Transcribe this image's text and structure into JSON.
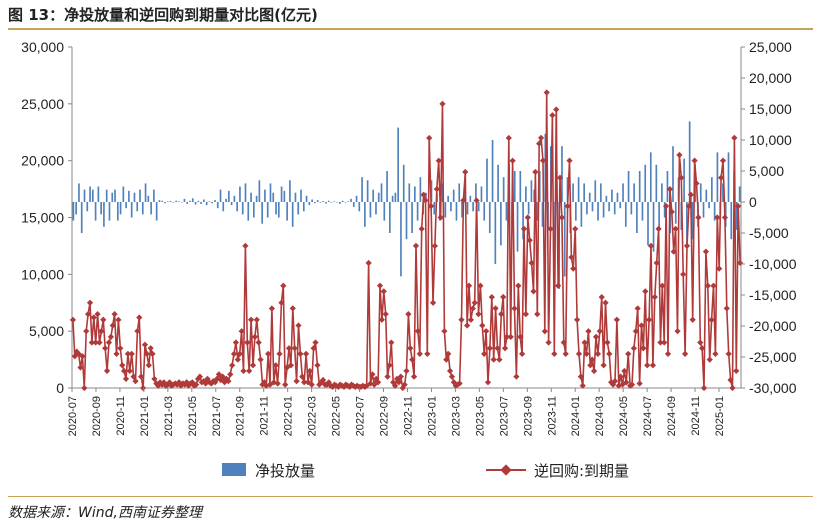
{
  "figure": {
    "title": "图 13：净投放量和逆回购到期量对比图(亿元)",
    "source": "数据来源：Wind,西南证券整理"
  },
  "colors": {
    "bar": "#4f81bd",
    "line": "#b03a3a",
    "accent": "#c9a25a"
  },
  "chart_data": {
    "type": "bar+line",
    "grid": false,
    "legend_placement": "bottom",
    "left_axis": {
      "ylim": [
        0,
        30000
      ],
      "ticks": [
        "0",
        "5,000",
        "10,000",
        "15,000",
        "20,000",
        "25,000",
        "30,000"
      ]
    },
    "right_axis": {
      "ylim": [
        -30000,
        25000
      ],
      "ticks": [
        "-30,000",
        "-25,000",
        "-20,000",
        "-15,000",
        "-10,000",
        "-5,000",
        "0",
        "5,000",
        "10,000",
        "15,000",
        "20,000",
        "25,000"
      ]
    },
    "x_ticks": [
      "2020-07",
      "2020-09",
      "2020-11",
      "2021-01",
      "2021-03",
      "2021-05",
      "2021-07",
      "2021-09",
      "2021-11",
      "2022-01",
      "2022-03",
      "2022-05",
      "2022-07",
      "2022-09",
      "2022-11",
      "2023-01",
      "2023-03",
      "2023-05",
      "2023-07",
      "2023-09",
      "2023-11",
      "2024-01",
      "2024-03",
      "2024-05",
      "2024-07",
      "2024-09",
      "2024-11",
      "2025-01"
    ],
    "series": [
      {
        "name": "净投放量",
        "type": "bar",
        "axis": "right",
        "values": [
          -3000,
          -2000,
          3000,
          -5000,
          2000,
          -1500,
          2500,
          2000,
          -3000,
          2500,
          -2000,
          -4000,
          2000,
          -3000,
          1500,
          2000,
          -3000,
          -2000,
          2500,
          -1000,
          1800,
          -2500,
          1500,
          -1500,
          2000,
          -2000,
          3000,
          1000,
          -2000,
          2000,
          -3000,
          300,
          200,
          -200,
          100,
          150,
          -100,
          200,
          100,
          -50,
          500,
          -300,
          200,
          600,
          -400,
          200,
          -300,
          400,
          -500,
          100,
          -200,
          300,
          -1000,
          2000,
          -1500,
          500,
          1800,
          -500,
          1000,
          -1500,
          2500,
          -2000,
          3000,
          -3000,
          1500,
          -2500,
          1000,
          3500,
          -3500,
          2000,
          -2500,
          3000,
          1500,
          -2000,
          -2500,
          2500,
          1800,
          -3000,
          3500,
          -4000,
          1500,
          -2000,
          2000,
          -1500,
          1000,
          -500,
          400,
          -200,
          300,
          -100,
          150,
          -250,
          200,
          -100,
          100,
          -50,
          -300,
          200,
          -100,
          100,
          500,
          -800,
          1000,
          -1500,
          4000,
          -4000,
          3500,
          -2500,
          2000,
          -2000,
          1500,
          3000,
          -3000,
          5000,
          -5000,
          1000,
          1500,
          12000,
          -12000,
          6000,
          -6000,
          3000,
          -5000,
          2500,
          -3000,
          4000,
          -2000,
          1500,
          -1500,
          3500,
          -2000,
          1500,
          -3000,
          3000,
          -2500,
          1000,
          -1500,
          2000,
          -3000,
          3000,
          -2500,
          2500,
          -2000,
          1000,
          -1500,
          3000,
          -1500,
          2500,
          -3000,
          7000,
          -5000,
          10000,
          -10000,
          6000,
          -7000,
          4000,
          -3000,
          6000,
          -4000,
          5000,
          -8000,
          5000,
          -6000,
          2500,
          -2000,
          3500,
          2000,
          -3000,
          5000,
          -4000,
          11000,
          -4500,
          9000,
          -8000,
          15000,
          -14000,
          9000,
          -12000,
          4000,
          -5000,
          3000,
          -3000,
          4000,
          -4000,
          3000,
          -2000,
          1500,
          -1500,
          3500,
          -3000,
          3000,
          -2500,
          1000,
          -1500,
          2000,
          -2000,
          1500,
          -1000,
          3000,
          -4000,
          5000,
          -2000,
          3000,
          -5000,
          5000,
          -3000,
          6000,
          -7000,
          8000,
          -8000,
          6000,
          -4000,
          3000,
          -2500,
          5000,
          -5000,
          9000,
          -3500,
          4000,
          -4500,
          7000,
          -7000,
          13000,
          -6000,
          6000,
          -4000,
          3000,
          -2500,
          2000,
          -1000,
          4000,
          -3000,
          8000,
          -3000,
          3000,
          -4000,
          8000,
          -6000,
          5000,
          -4500,
          2500
        ]
      },
      {
        "name": "逆回购:到期量",
        "type": "line",
        "axis": "left",
        "values": [
          6000,
          2800,
          3200,
          3000,
          1800,
          2800,
          0,
          5000,
          6500,
          7500,
          4000,
          6200,
          4000,
          6500,
          4000,
          5000,
          6000,
          3500,
          1500,
          4000,
          4500,
          5500,
          6500,
          3000,
          6000,
          3500,
          2000,
          1500,
          800,
          3000,
          1500,
          3000,
          1000,
          600,
          5000,
          6200,
          1000,
          0,
          3800,
          3000,
          2000,
          3500,
          3000,
          800,
          400,
          200,
          500,
          300,
          500,
          200,
          300,
          500,
          200,
          300,
          400,
          300,
          500,
          200,
          400,
          300,
          500,
          200,
          400,
          500,
          200,
          300,
          800,
          1000,
          500,
          600,
          400,
          800,
          500,
          400,
          600,
          500,
          800,
          1200,
          700,
          1000,
          500,
          800,
          600,
          1200,
          2000,
          3000,
          4000,
          2500,
          3000,
          5000,
          1500,
          12500,
          4000,
          1500,
          6000,
          2000,
          4500,
          6000,
          4000,
          2500,
          300,
          500,
          200,
          3000,
          300,
          7000,
          500,
          2000,
          400,
          3000,
          7500,
          9000,
          300,
          1800,
          3500,
          2000,
          7000,
          3500,
          600,
          5500,
          3000,
          1000,
          500,
          3000,
          500,
          1500,
          300,
          3500,
          4000,
          2000,
          300,
          500,
          700,
          300,
          300,
          500,
          200,
          100,
          300,
          200,
          100,
          300,
          200,
          100,
          300,
          200,
          100,
          300,
          200,
          100,
          200,
          100,
          100,
          200,
          100,
          200,
          11000,
          400,
          1200,
          300,
          800,
          500,
          9000,
          6000,
          8500,
          6500,
          1000,
          2000,
          4000,
          500,
          200,
          800,
          500,
          1000,
          0,
          300,
          1500,
          6500,
          3500,
          2500,
          1000,
          12500,
          5000,
          3000,
          14000,
          17000,
          16500,
          3000,
          22000,
          16000,
          7500,
          12500,
          17500,
          20000,
          15000,
          25000,
          5000,
          2500,
          3000,
          1500,
          1000,
          500,
          200,
          300,
          400,
          6000,
          16500,
          19000,
          5500,
          9000,
          6000,
          7000,
          7500,
          16500,
          6500,
          9000,
          5500,
          3000,
          5000,
          500,
          3500,
          8000,
          2500,
          7000,
          3500,
          2500,
          6500,
          8000,
          3500,
          4500,
          22000,
          4500,
          20000,
          7000,
          1000,
          9000,
          4500,
          3000,
          14000,
          6500,
          15000,
          13000,
          11000,
          8500,
          19000,
          6500,
          21500,
          22000,
          20000,
          5000,
          26000,
          4000,
          14000,
          24000,
          3000,
          24500,
          9000,
          18500,
          15000,
          4000,
          3000,
          16000,
          20000,
          11500,
          10500,
          14000,
          6000,
          3000,
          1000,
          200,
          4000,
          3000,
          5000,
          2000,
          2500,
          1500,
          4500,
          3000,
          5000,
          8000,
          2000,
          7500,
          4000,
          3000,
          500,
          300,
          600,
          6000,
          200,
          1000,
          300,
          1500,
          500,
          3000,
          200,
          300,
          3500,
          5000,
          7000,
          400,
          5500,
          3500,
          8500,
          2000,
          6000,
          12500,
          2000,
          8000,
          11000,
          14000,
          4000,
          9000,
          4000,
          16000,
          3000,
          17500,
          15500,
          12000,
          14000,
          5000,
          20500,
          18500,
          10000,
          3000,
          12500,
          16000,
          17000,
          6000,
          20000,
          18000,
          15000,
          4000,
          3500,
          0,
          12000,
          9000,
          2500,
          6000,
          9000,
          3000,
          15000,
          10500,
          18500,
          20000,
          15000,
          7000,
          3000,
          700,
          0,
          22000,
          1500,
          16000,
          11000
        ]
      }
    ]
  },
  "legend": {
    "bar_label": "净投放量",
    "line_label": "逆回购:到期量"
  }
}
